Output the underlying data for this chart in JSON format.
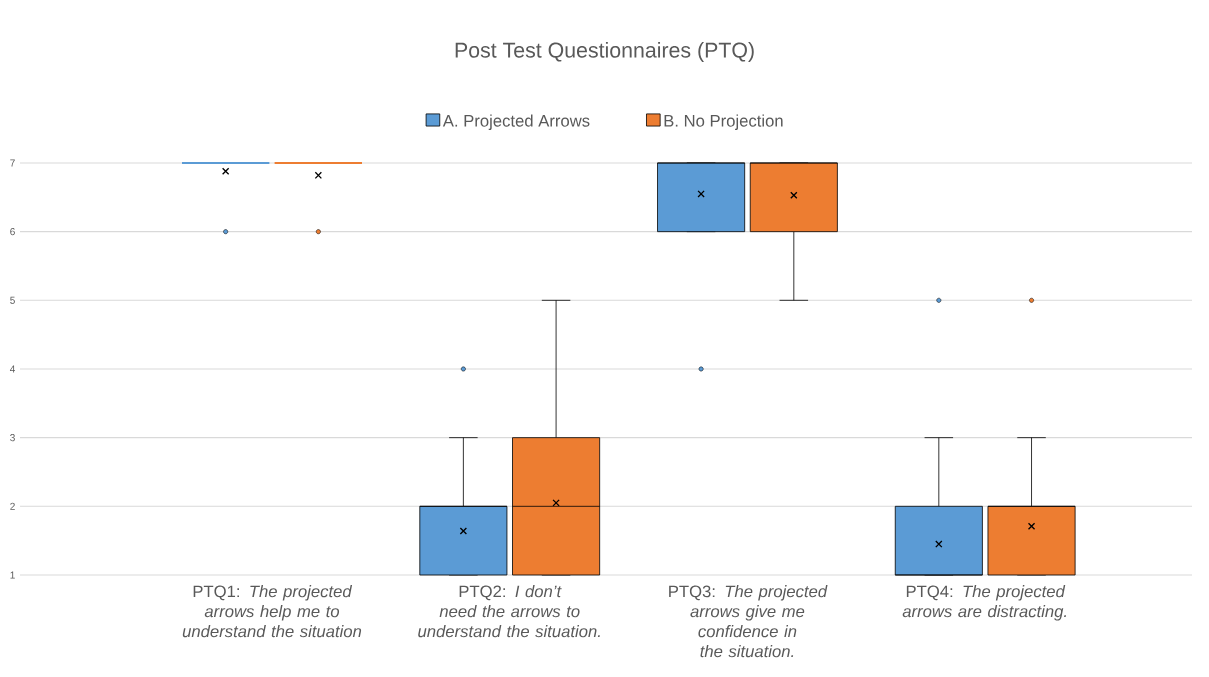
{
  "chart_data": {
    "type": "box",
    "title": "Post Test Questionnaires (PTQ)",
    "categories": [
      "PTQ1: *The projected arrows help me to understand the situation*",
      "PTQ2: *I don’t need the arrows to understand the situation.*",
      "PTQ3: *The projected arrows give me confidence in the situation.*",
      "PTQ4: *The projected arrows are distracting.*"
    ],
    "ylim": [
      1,
      7
    ],
    "yticks": [
      1,
      2,
      3,
      4,
      5,
      6,
      7
    ],
    "grid": "y",
    "legend": "top",
    "series": [
      {
        "name": "A. Projected Arrows",
        "color": "#5b9bd5",
        "boxes": [
          {
            "low": 7,
            "q1": 7,
            "median": 7,
            "q3": 7,
            "high": 7,
            "mean": 6.88,
            "outliers": [
              6
            ]
          },
          {
            "low": 1,
            "q1": 1,
            "median": 2,
            "q3": 2,
            "high": 3,
            "mean": 1.64,
            "outliers": [
              4
            ]
          },
          {
            "low": 6,
            "q1": 6,
            "median": 7,
            "q3": 7,
            "high": 7,
            "mean": 6.55,
            "outliers": [
              4
            ]
          },
          {
            "low": 1,
            "q1": 1,
            "median": 1,
            "q3": 2,
            "high": 3,
            "mean": 1.45,
            "outliers": [
              5
            ]
          }
        ]
      },
      {
        "name": "B. No Projection",
        "color": "#ed7d31",
        "boxes": [
          {
            "low": 7,
            "q1": 7,
            "median": 7,
            "q3": 7,
            "high": 7,
            "mean": 6.82,
            "outliers": [
              6
            ]
          },
          {
            "low": 1,
            "q1": 1,
            "median": 2,
            "q3": 3,
            "high": 5,
            "mean": 2.05
          },
          {
            "low": 5,
            "q1": 6,
            "median": 7,
            "q3": 7,
            "high": 7,
            "mean": 6.53
          },
          {
            "low": 1,
            "q1": 1,
            "median": 2,
            "q3": 2,
            "high": 3,
            "mean": 1.71,
            "outliers": [
              5
            ]
          }
        ]
      }
    ]
  }
}
